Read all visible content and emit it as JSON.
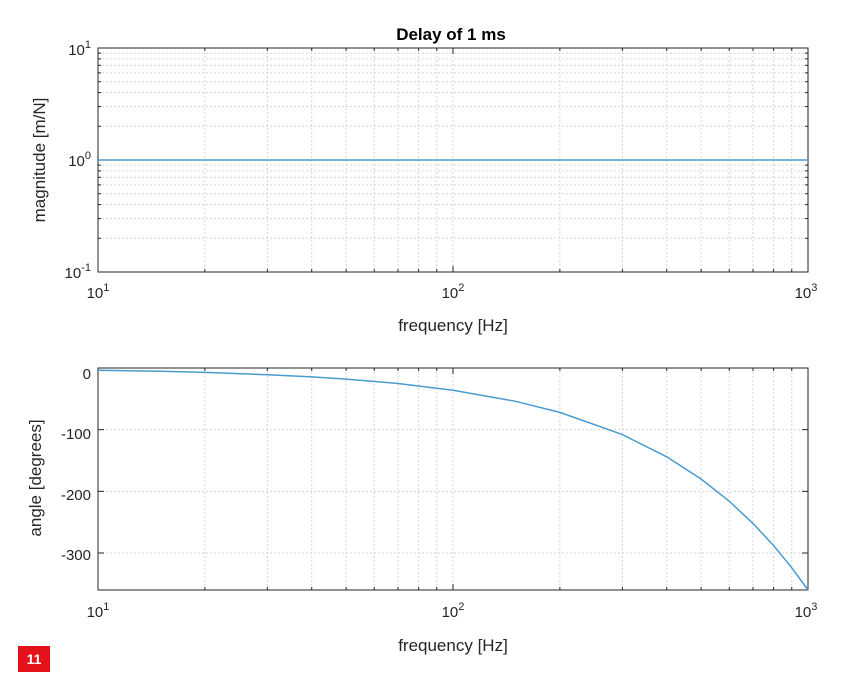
{
  "figure_number": "11",
  "colors": {
    "line": "#4a9bcf",
    "grid": "#d6d6d6",
    "axis": "#262626",
    "badge": "#e3121b"
  },
  "chart_data": [
    {
      "type": "line",
      "title": "Delay of 1 ms",
      "xlabel": "frequency [Hz]",
      "ylabel": "magnitude [m/N]",
      "xscale": "log",
      "yscale": "log",
      "xlim": [
        10,
        1000
      ],
      "ylim": [
        0.1,
        10
      ],
      "x_ticks": [
        10,
        100,
        1000
      ],
      "y_ticks": [
        0.1,
        1,
        10
      ],
      "x_tick_labels": [
        {
          "base": "10",
          "exp": "1"
        },
        {
          "base": "10",
          "exp": "2"
        },
        {
          "base": "10",
          "exp": "3"
        }
      ],
      "y_tick_labels": [
        {
          "base": "10",
          "exp": "-1"
        },
        {
          "base": "10",
          "exp": "0"
        },
        {
          "base": "10",
          "exp": "1"
        }
      ],
      "grid": true,
      "minor_grid": true,
      "series": [
        {
          "x": [
            10,
            1000
          ],
          "y": [
            1,
            1
          ]
        }
      ]
    },
    {
      "type": "line",
      "title": "",
      "xlabel": "frequency [Hz]",
      "ylabel": "angle [degrees]",
      "xscale": "log",
      "yscale": "linear",
      "xlim": [
        10,
        1000
      ],
      "ylim": [
        -360,
        0
      ],
      "x_ticks": [
        10,
        100,
        1000
      ],
      "y_ticks": [
        0,
        -100,
        -200,
        -300
      ],
      "x_tick_labels": [
        {
          "base": "10",
          "exp": "1"
        },
        {
          "base": "10",
          "exp": "2"
        },
        {
          "base": "10",
          "exp": "3"
        }
      ],
      "y_tick_labels": [
        "0",
        "-100",
        "-200",
        "-300"
      ],
      "grid": true,
      "minor_grid": false,
      "series": [
        {
          "x": [
            10,
            15,
            20,
            30,
            40,
            50,
            70,
            100,
            150,
            200,
            300,
            400,
            500,
            600,
            700,
            800,
            900,
            1000
          ],
          "y": [
            -3.6,
            -5.4,
            -7.2,
            -10.8,
            -14.4,
            -18,
            -25.2,
            -36,
            -54,
            -72,
            -108,
            -144,
            -180,
            -216,
            -252,
            -288,
            -324,
            -360
          ]
        }
      ]
    }
  ]
}
